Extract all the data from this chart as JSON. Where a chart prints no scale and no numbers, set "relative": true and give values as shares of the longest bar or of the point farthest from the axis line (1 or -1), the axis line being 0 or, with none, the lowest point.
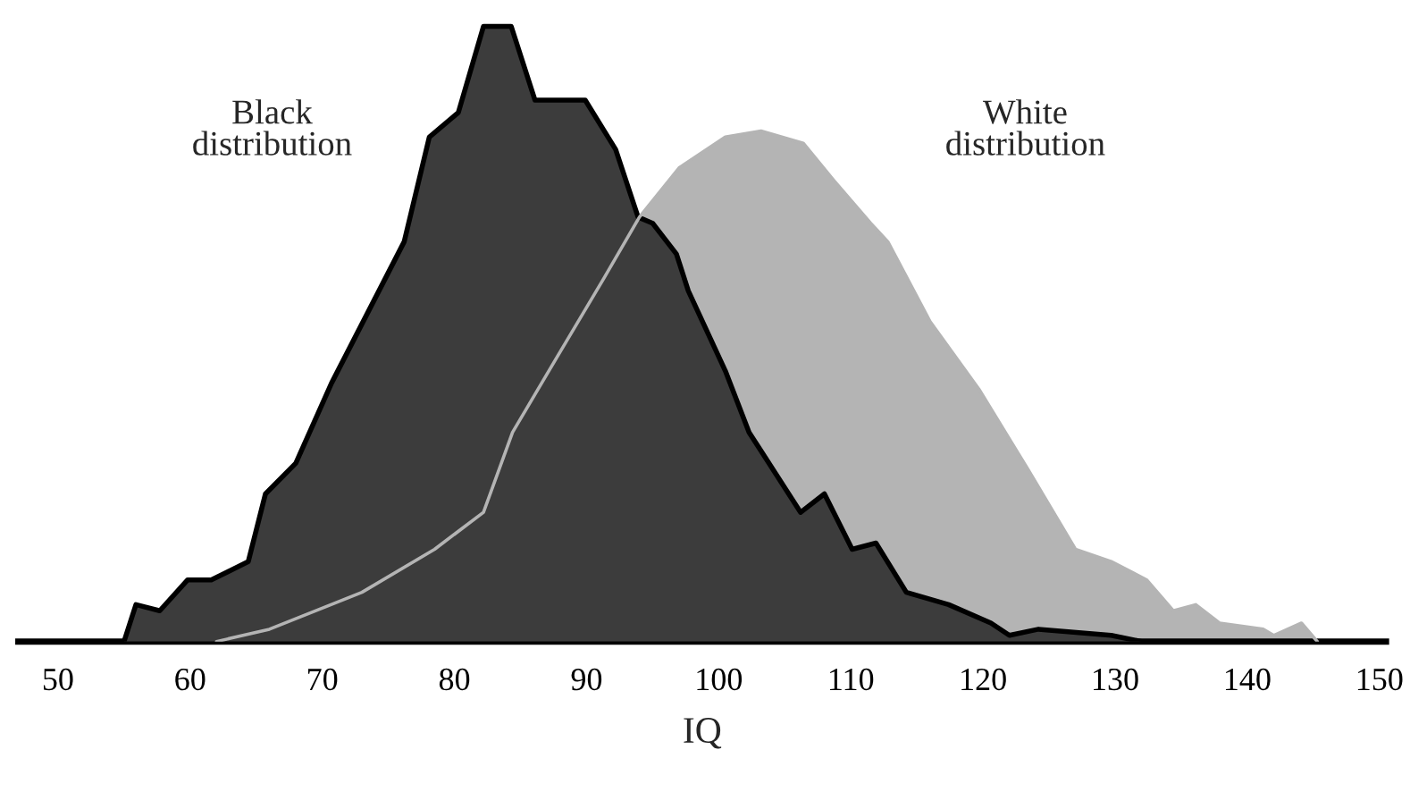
{
  "chart_data": {
    "type": "area",
    "relative": true,
    "xlabel": "IQ",
    "xlim": [
      47,
      150.5
    ],
    "xticks": [
      50,
      60,
      70,
      80,
      90,
      100,
      110,
      120,
      130,
      140,
      150
    ],
    "grid": false,
    "legend": false,
    "series": [
      {
        "name": "White distribution",
        "color": "#b4b4b4",
        "x": [
          62,
          66,
          73,
          78.5,
          82.2,
          84.4,
          87.7,
          91.3,
          94,
          97,
          100.5,
          103.2,
          106.4,
          108.7,
          111.5,
          112.8,
          116,
          119.7,
          123.4,
          127,
          129.7,
          132.4,
          134.4,
          136.1,
          137.9,
          141.2,
          142,
          144.1,
          145.3
        ],
        "values": [
          0,
          0.02,
          0.08,
          0.15,
          0.21,
          0.34,
          0.46,
          0.59,
          0.69,
          0.77,
          0.82,
          0.83,
          0.81,
          0.75,
          0.68,
          0.65,
          0.52,
          0.41,
          0.28,
          0.15,
          0.13,
          0.1,
          0.05,
          0.06,
          0.03,
          0.02,
          0.01,
          0.03,
          0
        ]
      },
      {
        "name": "Black distribution",
        "color": "#3c3c3c",
        "x": [
          55,
          55.9,
          57.7,
          59.8,
          61.6,
          64.4,
          65.7,
          68,
          70.7,
          76.2,
          78.1,
          80.3,
          82.2,
          84.3,
          86.1,
          88.1,
          89.9,
          92.2,
          93.9,
          95,
          96.8,
          97.7,
          100.5,
          102.3,
          106.2,
          108,
          110.1,
          111.9,
          114.2,
          117.4,
          120.6,
          122,
          124.2,
          129.7,
          132
        ],
        "values": [
          0,
          0.06,
          0.05,
          0.1,
          0.1,
          0.13,
          0.24,
          0.29,
          0.42,
          0.65,
          0.82,
          0.86,
          1.0,
          1.0,
          0.88,
          0.88,
          0.88,
          0.8,
          0.69,
          0.68,
          0.63,
          0.57,
          0.44,
          0.34,
          0.21,
          0.24,
          0.15,
          0.16,
          0.08,
          0.06,
          0.03,
          0.01,
          0.02,
          0.01,
          0
        ]
      }
    ]
  }
}
